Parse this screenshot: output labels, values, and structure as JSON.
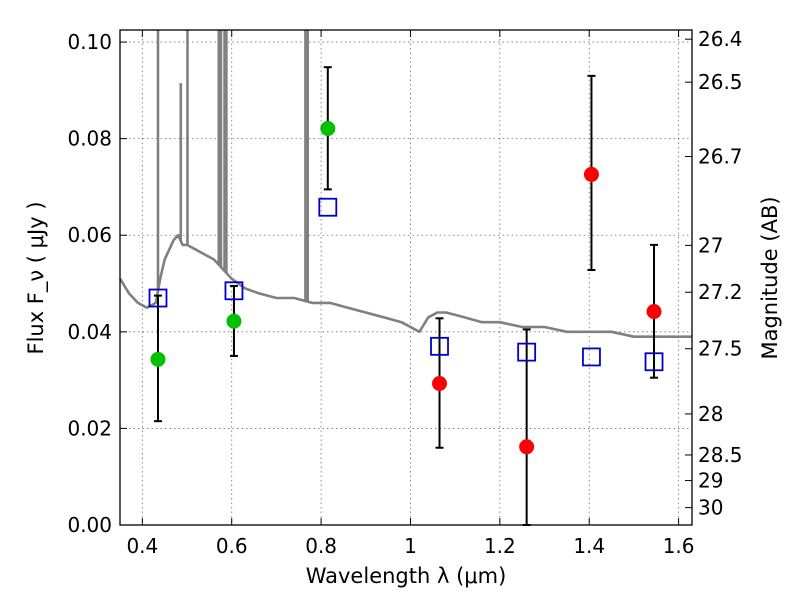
{
  "chart_data": {
    "type": "scatter",
    "title": "",
    "xlabel": "Wavelength  λ (μm)",
    "ylabel": "Flux  F_ν  ( μJy )",
    "ylabel_right": "Magnitude (AB)",
    "xlim": [
      0.35,
      1.63
    ],
    "ylim": [
      0.0,
      0.1025
    ],
    "xticks": [
      0.4,
      0.6,
      0.8,
      1.0,
      1.2,
      1.4,
      1.6
    ],
    "xtick_labels": [
      "0.4",
      "0.6",
      "0.8",
      "1",
      "1.2",
      "1.4",
      "1.6"
    ],
    "yticks": [
      0.0,
      0.02,
      0.04,
      0.06,
      0.08,
      0.1
    ],
    "ytick_labels": [
      "0.00",
      "0.02",
      "0.04",
      "0.06",
      "0.08",
      "0.10"
    ],
    "right_ticks": [
      {
        "label": "26.4",
        "flux": 0.1006
      },
      {
        "label": "26.5",
        "flux": 0.0917
      },
      {
        "label": "26.7",
        "flux": 0.0763
      },
      {
        "label": "27",
        "flux": 0.0579
      },
      {
        "label": "27.2",
        "flux": 0.0482
      },
      {
        "label": "27.5",
        "flux": 0.0365
      },
      {
        "label": "28",
        "flux": 0.023
      },
      {
        "label": "28.5",
        "flux": 0.0145
      },
      {
        "label": "29",
        "flux": 0.0092
      },
      {
        "label": "30",
        "flux": 0.0036
      }
    ],
    "grid": true,
    "colors": {
      "model": "#808080",
      "green": "#00c000",
      "red": "#ff0000",
      "square": "#0000cc",
      "errorbar": "#000000"
    },
    "model_spectrum": {
      "name": "model SED",
      "x": [
        0.35,
        0.37,
        0.39,
        0.41,
        0.43,
        0.44,
        0.45,
        0.46,
        0.47,
        0.48,
        0.49,
        0.5,
        0.52,
        0.54,
        0.56,
        0.58,
        0.6,
        0.63,
        0.66,
        0.7,
        0.74,
        0.78,
        0.82,
        0.86,
        0.9,
        0.94,
        0.98,
        1.0,
        1.02,
        1.04,
        1.06,
        1.08,
        1.12,
        1.16,
        1.2,
        1.25,
        1.3,
        1.35,
        1.4,
        1.45,
        1.5,
        1.55,
        1.6,
        1.63
      ],
      "y": [
        0.051,
        0.048,
        0.046,
        0.045,
        0.046,
        0.051,
        0.055,
        0.057,
        0.059,
        0.06,
        0.058,
        0.058,
        0.057,
        0.056,
        0.055,
        0.053,
        0.051,
        0.049,
        0.048,
        0.047,
        0.047,
        0.046,
        0.046,
        0.045,
        0.044,
        0.043,
        0.042,
        0.041,
        0.04,
        0.043,
        0.044,
        0.044,
        0.043,
        0.042,
        0.042,
        0.041,
        0.041,
        0.04,
        0.04,
        0.04,
        0.039,
        0.039,
        0.039,
        0.039
      ],
      "spikes": [
        0.435,
        0.486,
        0.501,
        0.571,
        0.576,
        0.584,
        0.588,
        0.765,
        0.77
      ]
    },
    "series": [
      {
        "name": "green points",
        "marker": "circle",
        "x": [
          0.435,
          0.605,
          0.815
        ],
        "y": [
          0.0343,
          0.0422,
          0.0821
        ],
        "yerr_low": [
          0.0215,
          0.035,
          0.0695
        ],
        "yerr_high": [
          0.0475,
          0.0495,
          0.0948
        ]
      },
      {
        "name": "red points",
        "marker": "circle",
        "x": [
          1.065,
          1.26,
          1.405,
          1.545
        ],
        "y": [
          0.0293,
          0.0162,
          0.0726,
          0.0442
        ],
        "yerr_low": [
          0.016,
          0.0,
          0.0528,
          0.0305
        ],
        "yerr_high": [
          0.0428,
          0.0405,
          0.093,
          0.058
        ]
      },
      {
        "name": "model photometry",
        "marker": "square",
        "x": [
          0.435,
          0.605,
          0.815,
          1.065,
          1.26,
          1.405,
          1.545
        ],
        "y": [
          0.047,
          0.0485,
          0.0658,
          0.037,
          0.0358,
          0.0348,
          0.0338
        ]
      }
    ]
  }
}
